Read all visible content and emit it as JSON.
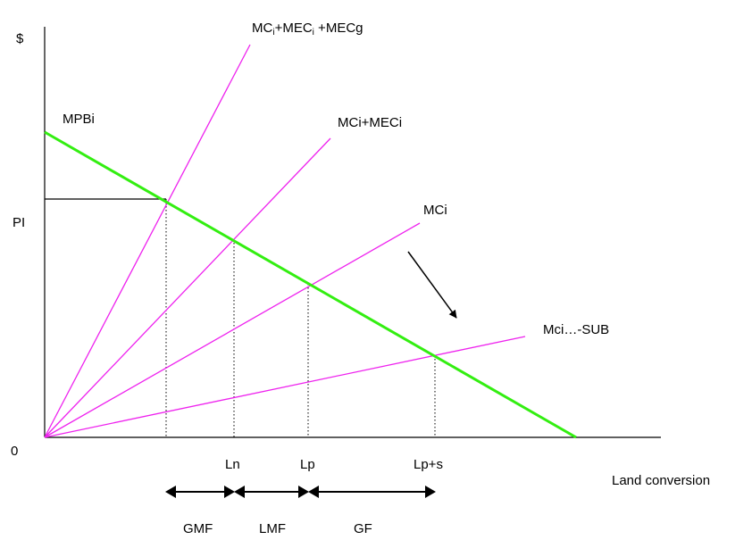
{
  "axes": {
    "y_label": "$",
    "x_label": "Land conversion",
    "origin_label": "0",
    "price_label": "PI"
  },
  "curves": {
    "mpb": {
      "label": "MPBi",
      "color": "#33ee11"
    },
    "mc_total": {
      "label_prefix": "MC",
      "sub1": "i",
      "label_mid": "+MEC",
      "sub2": "i",
      "label_suffix": " +MECg",
      "color": "#ee22ee"
    },
    "mc_mec": {
      "label": "MCi+MECi",
      "color": "#ee22ee"
    },
    "mc": {
      "label": "MCi",
      "color": "#ee22ee"
    },
    "mc_sub": {
      "label": "Mci…-SUB",
      "color": "#ee22ee"
    }
  },
  "points": {
    "ln": "Ln",
    "lp": "Lp",
    "lps": "Lp+s"
  },
  "ranges": {
    "gmf": "GMF",
    "lmf": "LMF",
    "gf": "GF"
  }
}
